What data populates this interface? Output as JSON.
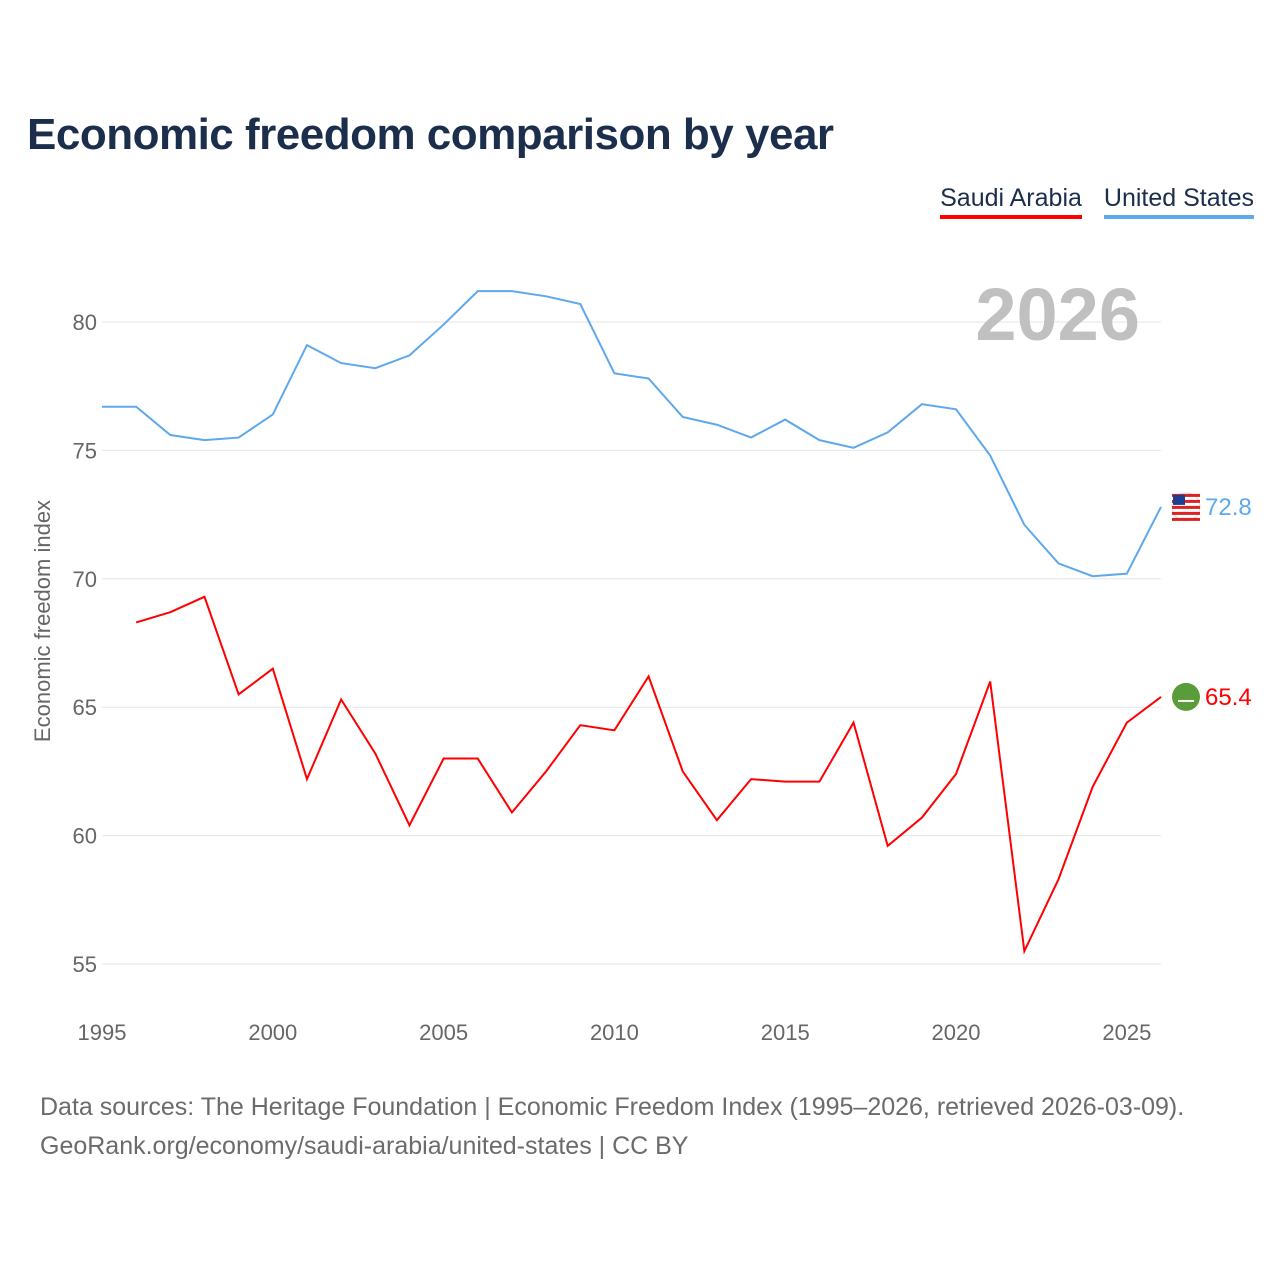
{
  "title": "Economic freedom comparison by year",
  "legend": [
    {
      "label": "Saudi Arabia",
      "color": "#ff0000"
    },
    {
      "label": "United States",
      "color": "#5ea8ec"
    }
  ],
  "year_watermark": "2026",
  "source_line1": "Data sources: The Heritage Foundation | Economic Freedom Index (1995–2026, retrieved 2026-03-09).",
  "source_line2": "GeoRank.org/economy/saudi-arabia/united-states | CC BY",
  "chart_data": {
    "type": "line",
    "title": "Economic freedom comparison by year",
    "xlabel": "",
    "ylabel": "Economic freedom index",
    "xlim": [
      1995,
      2026
    ],
    "ylim": [
      53,
      83
    ],
    "xticks": [
      1995,
      2000,
      2005,
      2010,
      2015,
      2020,
      2025
    ],
    "yticks": [
      55,
      60,
      65,
      70,
      75,
      80
    ],
    "grid": true,
    "legend_position": "top-right",
    "series": [
      {
        "name": "United States",
        "color": "#5ea8ec",
        "end_label": "72.8",
        "x": [
          1995,
          1996,
          1997,
          1998,
          1999,
          2000,
          2001,
          2002,
          2003,
          2004,
          2005,
          2006,
          2007,
          2008,
          2009,
          2010,
          2011,
          2012,
          2013,
          2014,
          2015,
          2016,
          2017,
          2018,
          2019,
          2020,
          2021,
          2022,
          2023,
          2024,
          2025,
          2026
        ],
        "values": [
          76.7,
          76.7,
          75.6,
          75.4,
          75.5,
          76.4,
          79.1,
          78.4,
          78.2,
          78.7,
          79.9,
          81.2,
          81.2,
          81.0,
          80.7,
          78.0,
          77.8,
          76.3,
          76.0,
          75.5,
          76.2,
          75.4,
          75.1,
          75.7,
          76.8,
          76.6,
          74.8,
          72.1,
          70.6,
          70.1,
          70.2,
          72.8
        ]
      },
      {
        "name": "Saudi Arabia",
        "color": "#ff0000",
        "end_label": "65.4",
        "x": [
          1996,
          1997,
          1998,
          1999,
          2000,
          2001,
          2002,
          2003,
          2004,
          2005,
          2006,
          2007,
          2008,
          2009,
          2010,
          2011,
          2012,
          2013,
          2014,
          2015,
          2016,
          2017,
          2018,
          2019,
          2020,
          2021,
          2022,
          2023,
          2024,
          2025,
          2026
        ],
        "values": [
          68.3,
          68.7,
          69.3,
          65.5,
          66.5,
          62.2,
          65.3,
          63.2,
          60.4,
          63.0,
          63.0,
          60.9,
          62.5,
          64.3,
          64.1,
          66.2,
          62.5,
          60.6,
          62.2,
          62.1,
          62.1,
          64.4,
          59.6,
          60.7,
          62.4,
          66.0,
          55.5,
          58.3,
          61.9,
          64.4,
          65.4
        ]
      }
    ]
  }
}
